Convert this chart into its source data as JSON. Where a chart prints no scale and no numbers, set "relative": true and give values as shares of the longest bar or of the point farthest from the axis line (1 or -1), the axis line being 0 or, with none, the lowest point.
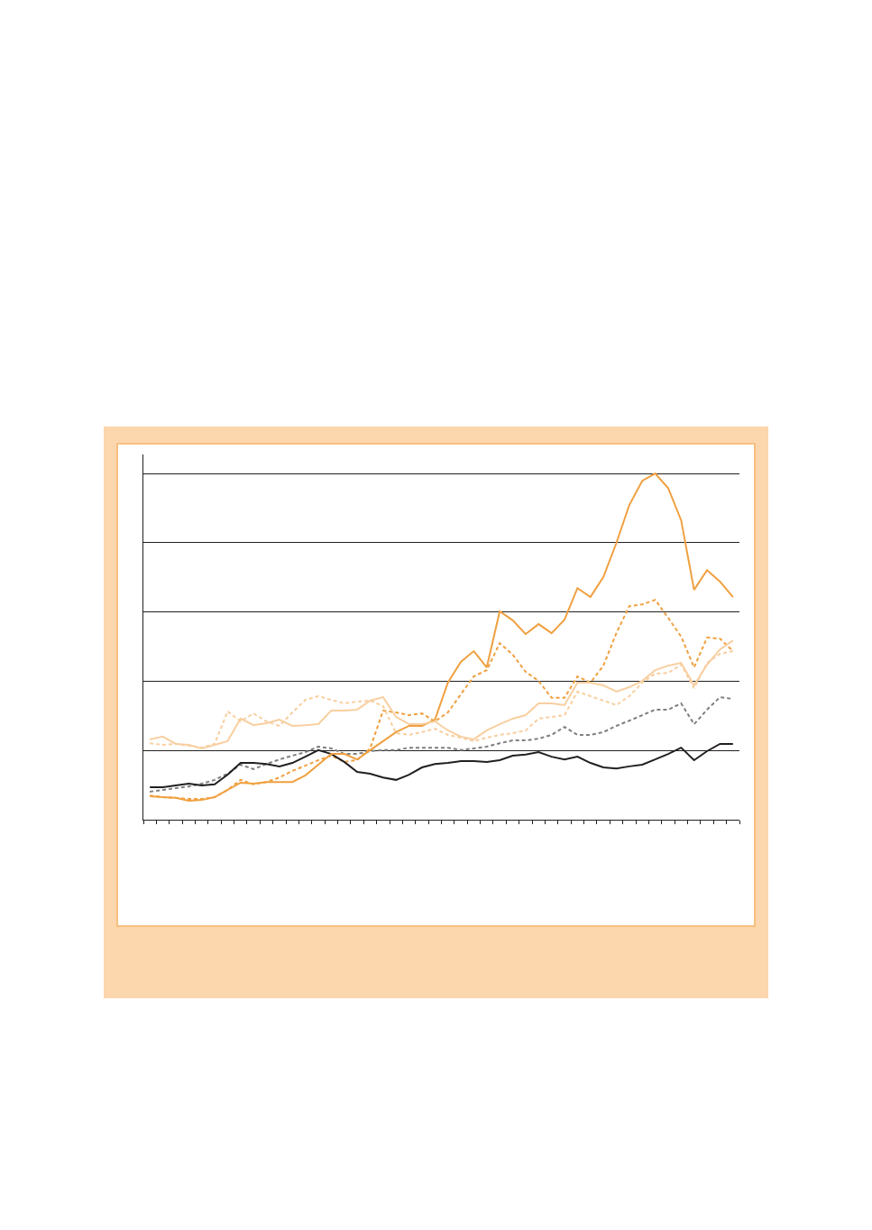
{
  "chart_data": {
    "type": "line",
    "relative": true,
    "grid": "y",
    "categories": [
      null,
      null,
      null,
      null,
      null,
      null,
      null,
      null,
      null,
      null,
      null,
      null,
      null,
      null,
      null,
      null,
      null,
      null,
      null,
      null,
      null,
      null,
      null,
      null,
      null,
      null,
      null,
      null,
      null,
      null,
      null,
      null,
      null,
      null,
      null,
      null,
      null,
      null,
      null,
      null,
      null,
      null,
      null,
      null,
      null,
      null
    ],
    "series": [
      {
        "color": "#7f7f7f",
        "line_style": "dashed",
        "values": [
          0.081,
          0.086,
          0.091,
          0.096,
          0.104,
          0.115,
          0.133,
          0.159,
          0.146,
          0.161,
          0.174,
          0.185,
          0.195,
          0.211,
          0.206,
          0.19,
          0.19,
          0.198,
          0.201,
          0.201,
          0.208,
          0.208,
          0.208,
          0.208,
          0.201,
          0.206,
          0.211,
          0.221,
          0.229,
          0.229,
          0.234,
          0.245,
          0.268,
          0.245,
          0.245,
          0.253,
          0.271,
          0.286,
          0.302,
          0.318,
          0.318,
          0.336,
          0.276,
          0.318,
          0.354,
          0.349
        ]
      },
      {
        "color": "#f0a040",
        "line_style": "dashed",
        "values": [
          0.07,
          0.065,
          0.063,
          0.06,
          0.06,
          0.065,
          0.086,
          0.115,
          0.102,
          0.109,
          0.122,
          0.141,
          0.156,
          0.172,
          0.185,
          0.167,
          0.172,
          0.206,
          0.315,
          0.31,
          0.302,
          0.307,
          0.284,
          0.31,
          0.362,
          0.414,
          0.432,
          0.51,
          0.477,
          0.427,
          0.401,
          0.352,
          0.352,
          0.414,
          0.396,
          0.445,
          0.539,
          0.617,
          0.622,
          0.635,
          0.583,
          0.529,
          0.44,
          0.526,
          0.523,
          0.487
        ]
      },
      {
        "color": "#f8cfa0",
        "line_style": "dashed",
        "values": [
          0.221,
          0.216,
          0.219,
          0.214,
          0.208,
          0.219,
          0.313,
          0.284,
          0.307,
          0.284,
          0.271,
          0.31,
          0.346,
          0.357,
          0.346,
          0.336,
          0.341,
          0.344,
          0.328,
          0.25,
          0.245,
          0.253,
          0.263,
          0.245,
          0.237,
          0.227,
          0.237,
          0.245,
          0.25,
          0.258,
          0.292,
          0.297,
          0.302,
          0.37,
          0.357,
          0.344,
          0.331,
          0.357,
          0.396,
          0.422,
          0.424,
          0.448,
          0.38,
          0.453,
          0.479,
          0.487
        ]
      },
      {
        "color": "#231f20",
        "line_style": "solid",
        "values": [
          0.094,
          0.094,
          0.099,
          0.104,
          0.099,
          0.102,
          0.13,
          0.164,
          0.164,
          0.161,
          0.154,
          0.164,
          0.182,
          0.201,
          0.19,
          0.167,
          0.138,
          0.133,
          0.122,
          0.115,
          0.13,
          0.151,
          0.161,
          0.164,
          0.169,
          0.169,
          0.167,
          0.172,
          0.185,
          0.188,
          0.195,
          0.182,
          0.174,
          0.182,
          0.164,
          0.151,
          0.148,
          0.154,
          0.159,
          0.174,
          0.19,
          0.208,
          0.172,
          0.198,
          0.219,
          0.219
        ]
      },
      {
        "color": "#f0a040",
        "line_style": "solid",
        "values": [
          0.068,
          0.065,
          0.063,
          0.055,
          0.057,
          0.065,
          0.086,
          0.107,
          0.104,
          0.109,
          0.109,
          0.109,
          0.128,
          0.159,
          0.19,
          0.19,
          0.174,
          0.201,
          0.227,
          0.253,
          0.271,
          0.271,
          0.289,
          0.396,
          0.456,
          0.487,
          0.44,
          0.602,
          0.576,
          0.536,
          0.565,
          0.539,
          0.578,
          0.669,
          0.643,
          0.701,
          0.799,
          0.909,
          0.979,
          1,
          0.958,
          0.865,
          0.664,
          0.721,
          0.688,
          0.643
        ]
      },
      {
        "color": "#f8cfa0",
        "line_style": "solid",
        "values": [
          0.232,
          0.24,
          0.219,
          0.216,
          0.206,
          0.216,
          0.227,
          0.292,
          0.273,
          0.279,
          0.289,
          0.271,
          0.273,
          0.276,
          0.315,
          0.315,
          0.318,
          0.344,
          0.354,
          0.297,
          0.276,
          0.276,
          0.284,
          0.258,
          0.24,
          0.232,
          0.258,
          0.276,
          0.292,
          0.302,
          0.336,
          0.336,
          0.331,
          0.396,
          0.396,
          0.388,
          0.37,
          0.383,
          0.401,
          0.432,
          0.445,
          0.453,
          0.388,
          0.448,
          0.492,
          0.518
        ]
      }
    ]
  }
}
